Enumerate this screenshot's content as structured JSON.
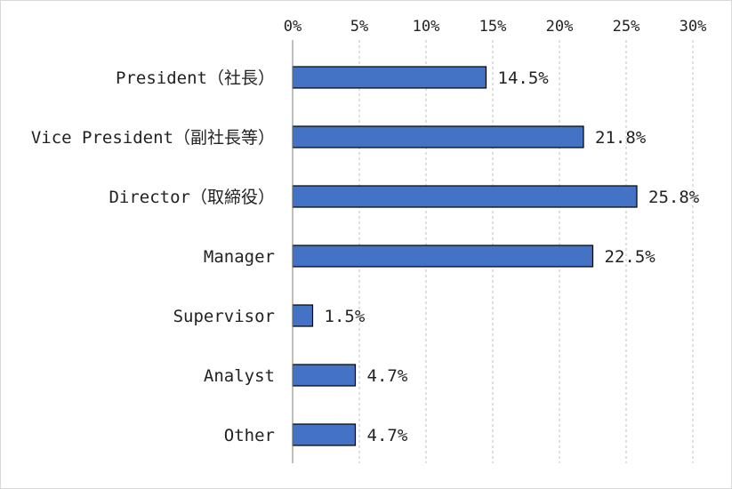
{
  "chart_data": {
    "type": "bar",
    "orientation": "horizontal",
    "categories": [
      "President（社長）",
      "Vice President（副社長等）",
      "Director（取締役）",
      "Manager",
      "Supervisor",
      "Analyst",
      "Other"
    ],
    "values": [
      14.5,
      21.8,
      25.8,
      22.5,
      1.5,
      4.7,
      4.7
    ],
    "value_labels": [
      "14.5%",
      "21.8%",
      "25.8%",
      "22.5%",
      "1.5%",
      "4.7%",
      "4.7%"
    ],
    "x_ticks": [
      "0%",
      "5%",
      "10%",
      "15%",
      "20%",
      "25%",
      "30%"
    ],
    "xlim": [
      0,
      30
    ],
    "x_axis_position": "top",
    "grid": "vertical dashed",
    "legend": "none",
    "bar_color": "#4472c4",
    "bar_edge_color": "#000000"
  }
}
